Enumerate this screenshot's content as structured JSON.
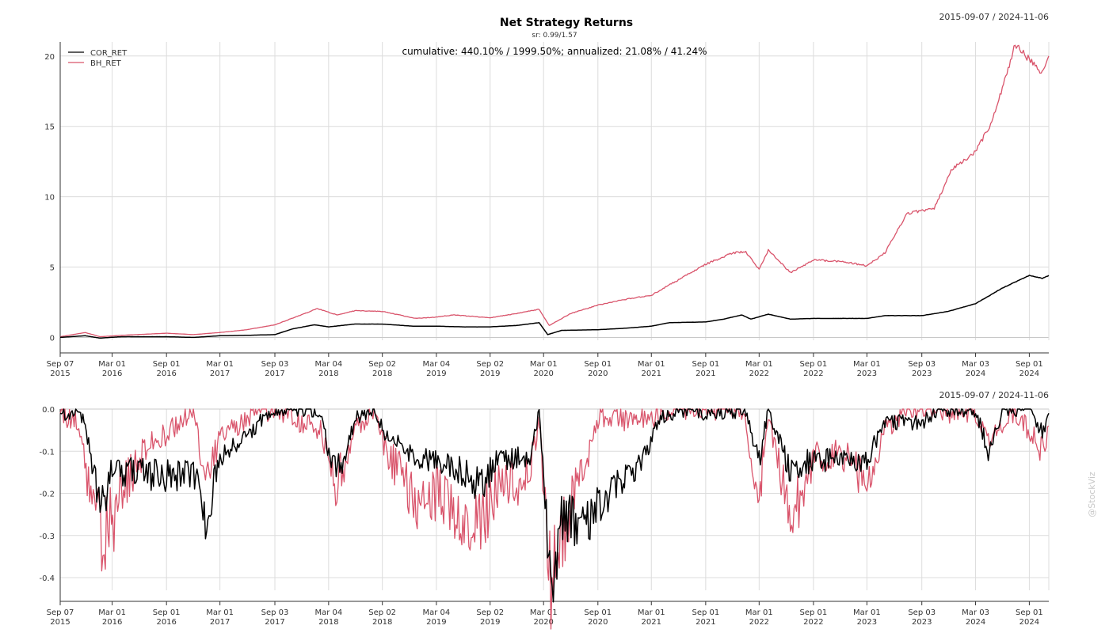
{
  "chart_data": [
    {
      "type": "line",
      "title": "Net Strategy Returns",
      "subtitle": "sr: 0.99/1.57",
      "annotation": "cumulative: 440.10% / 1999.50%; annualized: 21.08% / 41.24%",
      "date_range": "2015-09-07 / 2024-11-06",
      "legend": "top-left",
      "grid": true,
      "ylim": [
        -0.2,
        21
      ],
      "yticks": [
        "0",
        "5",
        "10",
        "15",
        "20"
      ],
      "ytick_values": [
        0,
        5,
        10,
        15,
        20
      ],
      "xticks": [
        {
          "date": "2015-09-07",
          "l1": "Sep 07",
          "l2": "2015"
        },
        {
          "date": "2016-03-01",
          "l1": "Mar 01",
          "l2": "2016"
        },
        {
          "date": "2016-09-01",
          "l1": "Sep 01",
          "l2": "2016"
        },
        {
          "date": "2017-03-01",
          "l1": "Mar 01",
          "l2": "2017"
        },
        {
          "date": "2017-09-03",
          "l1": "Sep 03",
          "l2": "2017"
        },
        {
          "date": "2018-03-04",
          "l1": "Mar 04",
          "l2": "2018"
        },
        {
          "date": "2018-09-02",
          "l1": "Sep 02",
          "l2": "2018"
        },
        {
          "date": "2019-03-04",
          "l1": "Mar 04",
          "l2": "2019"
        },
        {
          "date": "2019-09-02",
          "l1": "Sep 02",
          "l2": "2019"
        },
        {
          "date": "2020-03-01",
          "l1": "Mar 01",
          "l2": "2020"
        },
        {
          "date": "2020-09-01",
          "l1": "Sep 01",
          "l2": "2020"
        },
        {
          "date": "2021-03-01",
          "l1": "Mar 01",
          "l2": "2021"
        },
        {
          "date": "2021-09-01",
          "l1": "Sep 01",
          "l2": "2021"
        },
        {
          "date": "2022-03-01",
          "l1": "Mar 01",
          "l2": "2022"
        },
        {
          "date": "2022-09-01",
          "l1": "Sep 01",
          "l2": "2022"
        },
        {
          "date": "2023-03-01",
          "l1": "Mar 01",
          "l2": "2023"
        },
        {
          "date": "2023-09-03",
          "l1": "Sep 03",
          "l2": "2023"
        },
        {
          "date": "2024-03-03",
          "l1": "Mar 03",
          "l2": "2024"
        },
        {
          "date": "2024-09-01",
          "l1": "Sep 01",
          "l2": "2024"
        }
      ],
      "series": [
        {
          "name": "COR_RET",
          "color": "#000000",
          "points": [
            [
              "2015-09-07",
              0.0
            ],
            [
              "2015-12-01",
              0.12
            ],
            [
              "2016-01-20",
              -0.05
            ],
            [
              "2016-04-01",
              0.05
            ],
            [
              "2016-09-01",
              0.05
            ],
            [
              "2016-12-01",
              0.0
            ],
            [
              "2017-03-01",
              0.12
            ],
            [
              "2017-06-01",
              0.15
            ],
            [
              "2017-09-03",
              0.2
            ],
            [
              "2017-11-01",
              0.6
            ],
            [
              "2018-01-15",
              0.9
            ],
            [
              "2018-03-04",
              0.75
            ],
            [
              "2018-06-01",
              0.95
            ],
            [
              "2018-09-02",
              0.95
            ],
            [
              "2018-12-15",
              0.8
            ],
            [
              "2019-03-04",
              0.8
            ],
            [
              "2019-06-01",
              0.75
            ],
            [
              "2019-09-02",
              0.75
            ],
            [
              "2019-12-01",
              0.85
            ],
            [
              "2020-02-15",
              1.05
            ],
            [
              "2020-03-15",
              0.2
            ],
            [
              "2020-05-01",
              0.5
            ],
            [
              "2020-09-01",
              0.55
            ],
            [
              "2020-12-01",
              0.65
            ],
            [
              "2021-03-01",
              0.8
            ],
            [
              "2021-05-01",
              1.05
            ],
            [
              "2021-09-01",
              1.1
            ],
            [
              "2021-11-01",
              1.3
            ],
            [
              "2022-01-01",
              1.6
            ],
            [
              "2022-02-01",
              1.3
            ],
            [
              "2022-04-01",
              1.65
            ],
            [
              "2022-06-15",
              1.3
            ],
            [
              "2022-09-01",
              1.35
            ],
            [
              "2023-01-15",
              1.35
            ],
            [
              "2023-03-01",
              1.35
            ],
            [
              "2023-05-01",
              1.55
            ],
            [
              "2023-09-03",
              1.55
            ],
            [
              "2023-12-01",
              1.85
            ],
            [
              "2024-03-03",
              2.4
            ],
            [
              "2024-06-01",
              3.5
            ],
            [
              "2024-09-01",
              4.4
            ],
            [
              "2024-10-15",
              4.2
            ],
            [
              "2024-11-06",
              4.4
            ]
          ]
        },
        {
          "name": "BH_RET",
          "color": "#d9546b",
          "points": [
            [
              "2015-09-07",
              0.05
            ],
            [
              "2015-12-01",
              0.35
            ],
            [
              "2016-01-20",
              0.05
            ],
            [
              "2016-04-01",
              0.15
            ],
            [
              "2016-09-01",
              0.3
            ],
            [
              "2016-12-01",
              0.2
            ],
            [
              "2017-03-01",
              0.35
            ],
            [
              "2017-06-01",
              0.55
            ],
            [
              "2017-09-03",
              0.9
            ],
            [
              "2017-12-01",
              1.6
            ],
            [
              "2018-01-25",
              2.05
            ],
            [
              "2018-04-01",
              1.6
            ],
            [
              "2018-06-01",
              1.9
            ],
            [
              "2018-09-02",
              1.85
            ],
            [
              "2018-12-25",
              1.35
            ],
            [
              "2019-03-04",
              1.45
            ],
            [
              "2019-05-01",
              1.6
            ],
            [
              "2019-09-02",
              1.4
            ],
            [
              "2019-12-01",
              1.7
            ],
            [
              "2020-02-15",
              2.0
            ],
            [
              "2020-03-20",
              0.85
            ],
            [
              "2020-06-01",
              1.7
            ],
            [
              "2020-09-01",
              2.3
            ],
            [
              "2020-12-01",
              2.7
            ],
            [
              "2021-03-01",
              3.0
            ],
            [
              "2021-06-01",
              4.1
            ],
            [
              "2021-09-01",
              5.2
            ],
            [
              "2021-12-01",
              6.0
            ],
            [
              "2022-01-15",
              6.1
            ],
            [
              "2022-03-01",
              4.8
            ],
            [
              "2022-04-01",
              6.2
            ],
            [
              "2022-06-15",
              4.6
            ],
            [
              "2022-09-01",
              5.5
            ],
            [
              "2022-12-01",
              5.4
            ],
            [
              "2023-03-01",
              5.1
            ],
            [
              "2023-05-01",
              6.0
            ],
            [
              "2023-07-15",
              8.8
            ],
            [
              "2023-10-15",
              9.2
            ],
            [
              "2023-12-15",
              12.0
            ],
            [
              "2024-03-03",
              13.2
            ],
            [
              "2024-05-01",
              15.5
            ],
            [
              "2024-07-15",
              20.8
            ],
            [
              "2024-10-15",
              18.8
            ],
            [
              "2024-11-06",
              20.0
            ]
          ]
        }
      ]
    },
    {
      "type": "line",
      "title": "",
      "date_range": "2015-09-07 / 2024-11-06",
      "grid": true,
      "ylim": [
        -0.43,
        0.0
      ],
      "yticks": [
        "0.0",
        "-0.1",
        "-0.2",
        "-0.3",
        "-0.4"
      ],
      "ytick_values": [
        0.0,
        -0.1,
        -0.2,
        -0.3,
        -0.4
      ],
      "series": [
        {
          "name": "COR_RET",
          "color": "#000000",
          "points": [
            [
              "2015-09-07",
              -0.01
            ],
            [
              "2015-11-15",
              0.0
            ],
            [
              "2016-01-01",
              -0.15
            ],
            [
              "2016-01-20",
              -0.25
            ],
            [
              "2016-03-01",
              -0.15
            ],
            [
              "2016-06-01",
              -0.15
            ],
            [
              "2016-09-01",
              -0.16
            ],
            [
              "2016-12-01",
              -0.15
            ],
            [
              "2017-01-15",
              -0.27
            ],
            [
              "2017-03-01",
              -0.12
            ],
            [
              "2017-06-01",
              -0.06
            ],
            [
              "2017-09-03",
              0.0
            ],
            [
              "2017-12-01",
              0.0
            ],
            [
              "2018-02-05",
              0.0
            ],
            [
              "2018-03-01",
              -0.1
            ],
            [
              "2018-04-15",
              -0.15
            ],
            [
              "2018-06-01",
              -0.02
            ],
            [
              "2018-08-01",
              0.0
            ],
            [
              "2018-09-02",
              -0.05
            ],
            [
              "2018-12-25",
              -0.12
            ],
            [
              "2019-02-01",
              -0.12
            ],
            [
              "2019-05-01",
              -0.14
            ],
            [
              "2019-08-01",
              -0.18
            ],
            [
              "2019-10-01",
              -0.12
            ],
            [
              "2020-01-15",
              -0.12
            ],
            [
              "2020-02-15",
              0.0
            ],
            [
              "2020-03-22",
              -0.42
            ],
            [
              "2020-05-01",
              -0.26
            ],
            [
              "2020-08-01",
              -0.26
            ],
            [
              "2020-10-01",
              -0.2
            ],
            [
              "2021-01-01",
              -0.15
            ],
            [
              "2021-02-15",
              -0.1
            ],
            [
              "2021-04-01",
              -0.02
            ],
            [
              "2021-06-01",
              0.0
            ],
            [
              "2021-09-01",
              -0.01
            ],
            [
              "2022-01-15",
              0.0
            ],
            [
              "2022-03-01",
              -0.13
            ],
            [
              "2022-04-01",
              0.0
            ],
            [
              "2022-06-15",
              -0.15
            ],
            [
              "2022-09-01",
              -0.12
            ],
            [
              "2022-12-01",
              -0.12
            ],
            [
              "2023-03-01",
              -0.12
            ],
            [
              "2023-05-01",
              -0.03
            ],
            [
              "2023-09-03",
              -0.03
            ],
            [
              "2023-11-01",
              0.0
            ],
            [
              "2024-03-03",
              0.0
            ],
            [
              "2024-04-15",
              -0.1
            ],
            [
              "2024-06-01",
              0.0
            ],
            [
              "2024-09-01",
              0.0
            ],
            [
              "2024-10-15",
              -0.05
            ],
            [
              "2024-11-06",
              -0.01
            ]
          ]
        },
        {
          "name": "BH_RET",
          "color": "#d9546b",
          "points": [
            [
              "2015-09-07",
              -0.01
            ],
            [
              "2015-11-01",
              -0.03
            ],
            [
              "2016-01-01",
              -0.25
            ],
            [
              "2016-02-11",
              -0.31
            ],
            [
              "2016-04-01",
              -0.2
            ],
            [
              "2016-06-27",
              -0.09
            ],
            [
              "2016-09-01",
              -0.06
            ],
            [
              "2016-12-01",
              0.0
            ],
            [
              "2017-01-15",
              -0.18
            ],
            [
              "2017-03-01",
              -0.07
            ],
            [
              "2017-06-01",
              -0.02
            ],
            [
              "2017-09-03",
              0.0
            ],
            [
              "2018-02-05",
              -0.05
            ],
            [
              "2018-04-01",
              -0.18
            ],
            [
              "2018-06-01",
              -0.05
            ],
            [
              "2018-08-01",
              0.0
            ],
            [
              "2018-09-15",
              -0.1
            ],
            [
              "2018-12-25",
              -0.22
            ],
            [
              "2019-03-04",
              -0.2
            ],
            [
              "2019-05-01",
              -0.23
            ],
            [
              "2019-08-01",
              -0.26
            ],
            [
              "2019-10-01",
              -0.2
            ],
            [
              "2020-01-15",
              -0.15
            ],
            [
              "2020-02-15",
              -0.03
            ],
            [
              "2020-03-22",
              -0.41
            ],
            [
              "2020-05-01",
              -0.3
            ],
            [
              "2020-07-15",
              -0.15
            ],
            [
              "2020-09-01",
              -0.02
            ],
            [
              "2021-01-01",
              -0.03
            ],
            [
              "2021-06-01",
              0.0
            ],
            [
              "2022-01-01",
              0.0
            ],
            [
              "2022-03-01",
              -0.2
            ],
            [
              "2022-04-01",
              -0.02
            ],
            [
              "2022-06-15",
              -0.27
            ],
            [
              "2022-09-01",
              -0.12
            ],
            [
              "2022-12-01",
              -0.1
            ],
            [
              "2023-03-01",
              -0.18
            ],
            [
              "2023-05-01",
              -0.05
            ],
            [
              "2023-07-15",
              0.0
            ],
            [
              "2024-03-03",
              -0.01
            ],
            [
              "2024-04-15",
              -0.08
            ],
            [
              "2024-07-15",
              0.0
            ],
            [
              "2024-10-15",
              -0.1
            ],
            [
              "2024-11-06",
              -0.04
            ]
          ]
        }
      ]
    }
  ],
  "watermark": "@StockViz"
}
